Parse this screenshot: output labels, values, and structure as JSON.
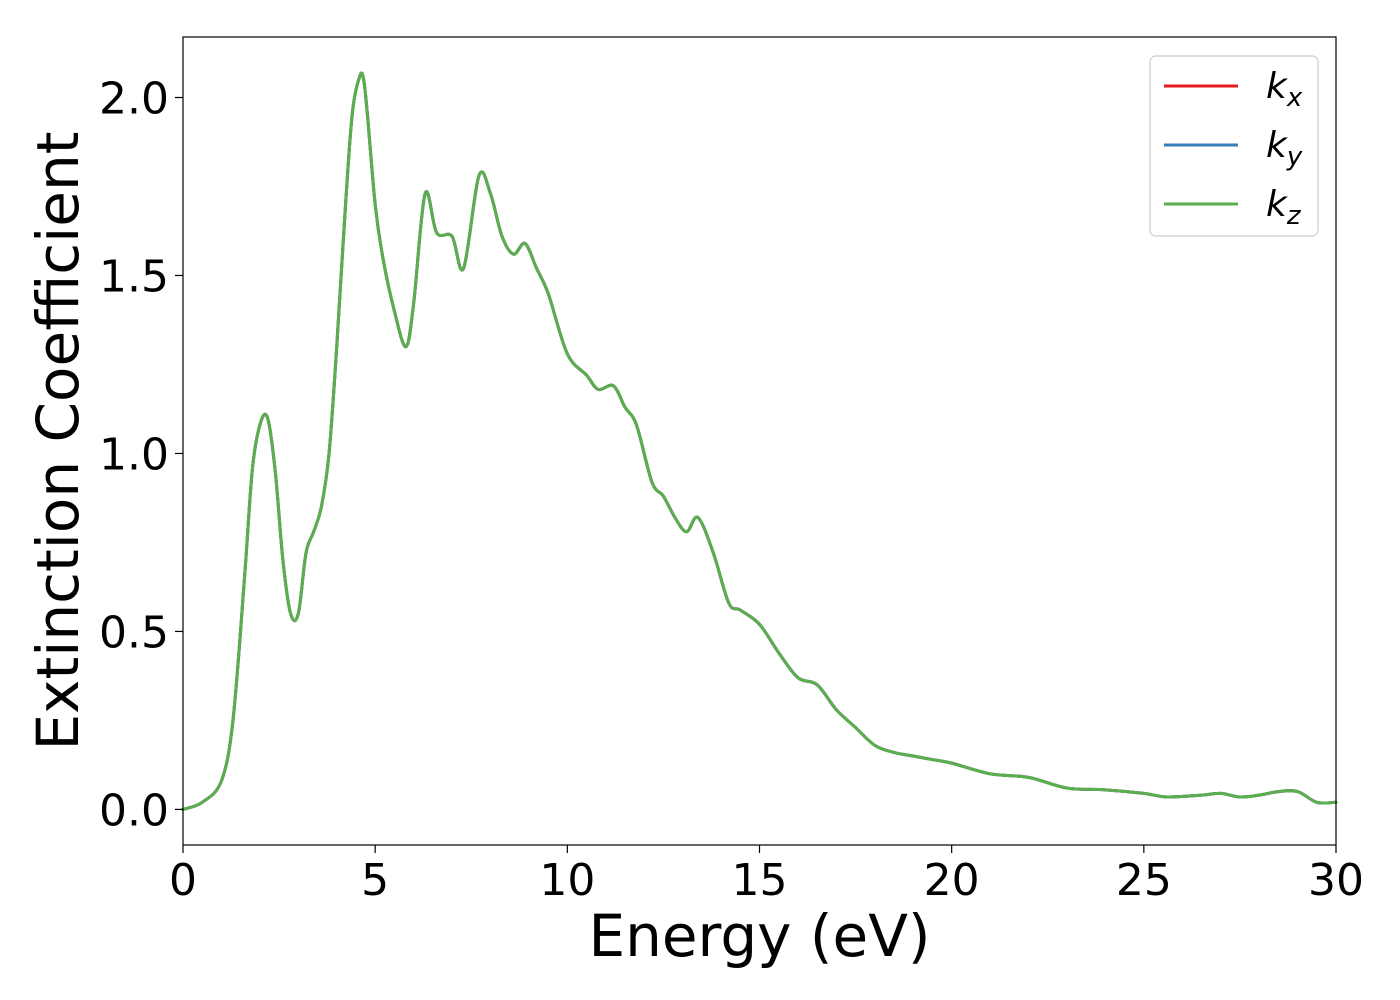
{
  "chart_data": {
    "type": "line",
    "title": "",
    "xlabel": "Energy (eV)",
    "ylabel": "Extinction Coefficient",
    "xlim": [
      0,
      30
    ],
    "ylim": [
      -0.1,
      2.17
    ],
    "xticks": [
      0,
      5,
      10,
      15,
      20,
      25,
      30
    ],
    "xtick_labels": [
      "0",
      "5",
      "10",
      "15",
      "20",
      "25",
      "30"
    ],
    "yticks": [
      0.0,
      0.5,
      1.0,
      1.5,
      2.0
    ],
    "ytick_labels": [
      "0.0",
      "0.5",
      "1.0",
      "1.5",
      "2.0"
    ],
    "grid": false,
    "legend_position": "top-right",
    "x": [
      0,
      0.5,
      1.0,
      1.3,
      1.6,
      1.8,
      2.0,
      2.2,
      2.4,
      2.6,
      2.8,
      3.0,
      3.2,
      3.4,
      3.6,
      3.8,
      4.0,
      4.2,
      4.4,
      4.6,
      4.7,
      4.8,
      5.0,
      5.2,
      5.5,
      5.8,
      6.0,
      6.3,
      6.6,
      7.0,
      7.3,
      7.7,
      8.0,
      8.3,
      8.6,
      8.9,
      9.2,
      9.5,
      10.0,
      10.5,
      10.8,
      11.2,
      11.5,
      11.8,
      12.2,
      12.5,
      12.8,
      13.1,
      13.4,
      13.8,
      14.2,
      14.5,
      15.0,
      15.5,
      16.0,
      16.5,
      17.0,
      17.5,
      18.0,
      18.5,
      19.0,
      19.5,
      20.0,
      21.0,
      22.0,
      23.0,
      24.0,
      25.0,
      25.6,
      26.5,
      27.0,
      27.5,
      28.0,
      28.5,
      29.0,
      29.5,
      30.0
    ],
    "series": [
      {
        "name": "k_x",
        "color": "#e41a1c",
        "y": [
          0.0,
          0.02,
          0.08,
          0.25,
          0.65,
          0.95,
          1.08,
          1.1,
          0.95,
          0.7,
          0.55,
          0.55,
          0.72,
          0.78,
          0.85,
          1.0,
          1.3,
          1.65,
          1.95,
          2.06,
          2.05,
          1.95,
          1.7,
          1.55,
          1.4,
          1.3,
          1.42,
          1.73,
          1.62,
          1.61,
          1.52,
          1.78,
          1.73,
          1.61,
          1.56,
          1.59,
          1.52,
          1.45,
          1.28,
          1.22,
          1.18,
          1.19,
          1.13,
          1.08,
          0.92,
          0.88,
          0.82,
          0.78,
          0.82,
          0.72,
          0.58,
          0.56,
          0.52,
          0.44,
          0.37,
          0.35,
          0.28,
          0.23,
          0.18,
          0.16,
          0.15,
          0.14,
          0.13,
          0.1,
          0.09,
          0.06,
          0.055,
          0.045,
          0.035,
          0.04,
          0.045,
          0.035,
          0.04,
          0.05,
          0.05,
          0.02,
          0.02
        ]
      },
      {
        "name": "k_y",
        "color": "#377eb8",
        "y": [
          0.0,
          0.02,
          0.08,
          0.25,
          0.65,
          0.95,
          1.08,
          1.1,
          0.95,
          0.7,
          0.55,
          0.55,
          0.72,
          0.78,
          0.85,
          1.0,
          1.3,
          1.65,
          1.95,
          2.06,
          2.05,
          1.95,
          1.7,
          1.55,
          1.4,
          1.3,
          1.42,
          1.73,
          1.62,
          1.61,
          1.52,
          1.78,
          1.73,
          1.61,
          1.56,
          1.59,
          1.52,
          1.45,
          1.28,
          1.22,
          1.18,
          1.19,
          1.13,
          1.08,
          0.92,
          0.88,
          0.82,
          0.78,
          0.82,
          0.72,
          0.58,
          0.56,
          0.52,
          0.44,
          0.37,
          0.35,
          0.28,
          0.23,
          0.18,
          0.16,
          0.15,
          0.14,
          0.13,
          0.1,
          0.09,
          0.06,
          0.055,
          0.045,
          0.035,
          0.04,
          0.045,
          0.035,
          0.04,
          0.05,
          0.05,
          0.02,
          0.02
        ]
      },
      {
        "name": "k_z",
        "color": "#5aae4e",
        "y": [
          0.0,
          0.02,
          0.08,
          0.25,
          0.65,
          0.95,
          1.08,
          1.1,
          0.95,
          0.7,
          0.55,
          0.55,
          0.72,
          0.78,
          0.85,
          1.0,
          1.3,
          1.65,
          1.95,
          2.06,
          2.05,
          1.95,
          1.7,
          1.55,
          1.4,
          1.3,
          1.42,
          1.73,
          1.62,
          1.61,
          1.52,
          1.78,
          1.73,
          1.61,
          1.56,
          1.59,
          1.52,
          1.45,
          1.28,
          1.22,
          1.18,
          1.19,
          1.13,
          1.08,
          0.92,
          0.88,
          0.82,
          0.78,
          0.82,
          0.72,
          0.58,
          0.56,
          0.52,
          0.44,
          0.37,
          0.35,
          0.28,
          0.23,
          0.18,
          0.16,
          0.15,
          0.14,
          0.13,
          0.1,
          0.09,
          0.06,
          0.055,
          0.045,
          0.035,
          0.04,
          0.045,
          0.035,
          0.04,
          0.05,
          0.05,
          0.02,
          0.02
        ]
      }
    ],
    "legend": [
      {
        "base": "k",
        "sub": "x"
      },
      {
        "base": "k",
        "sub": "y"
      },
      {
        "base": "k",
        "sub": "z"
      }
    ]
  }
}
